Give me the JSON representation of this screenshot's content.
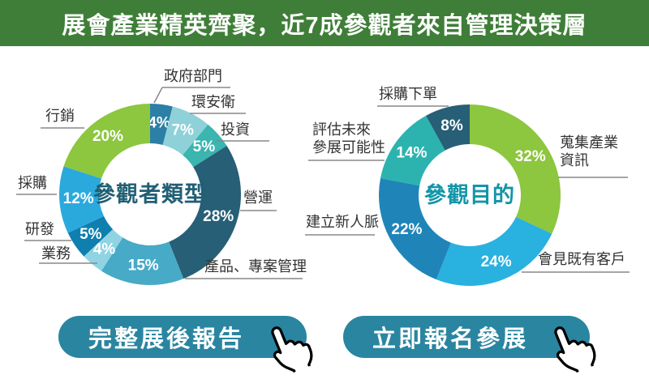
{
  "header": {
    "title": "展會產業精英齊聚，近7成參觀者來自管理決策層",
    "bg_color": "#3f7e38"
  },
  "colors": {
    "header_bg": "#3f7e38",
    "button_bg": "#2a85a1",
    "callout_text": "#333333",
    "leader_line": "#888888",
    "percent_text": "#ffffff"
  },
  "chart_data": [
    {
      "type": "pie",
      "subtype": "donut",
      "title": "參觀者類型",
      "title_color": "#215f74",
      "legend_position": "outside-callouts",
      "segments": [
        {
          "label": "政府部門",
          "display": "政府部門",
          "value": 4,
          "color": "#2c7fa6"
        },
        {
          "label": "環安衛",
          "display": "環安衛",
          "value": 7,
          "color": "#8ed1d8"
        },
        {
          "label": "投資",
          "display": "投資",
          "value": 5,
          "color": "#3ab5af"
        },
        {
          "label": "營運",
          "display": "營運",
          "value": 28,
          "color": "#265f76"
        },
        {
          "label": "產品、專案管理",
          "display": "產品、專案管理",
          "value": 15,
          "color": "#47aac6"
        },
        {
          "label": "業務",
          "display": "業務",
          "value": 4,
          "color": "#90d4e4"
        },
        {
          "label": "研發",
          "display": "研發",
          "value": 5,
          "color": "#0e7fae"
        },
        {
          "label": "採購",
          "display": "採購",
          "value": 12,
          "color": "#2aa9dd"
        },
        {
          "label": "行銷",
          "display": "行銷",
          "value": 20,
          "color": "#8dc63f"
        }
      ]
    },
    {
      "type": "pie",
      "subtype": "donut",
      "title": "參觀目的",
      "title_color": "#1295a8",
      "legend_position": "outside-callouts",
      "segments": [
        {
          "label": "蒐集產業資訊",
          "display": "蒐集產業\n資訊",
          "value": 32,
          "color": "#8dc63f"
        },
        {
          "label": "會見既有客戶",
          "display": "會見既有客戶",
          "value": 24,
          "color": "#29b1e0"
        },
        {
          "label": "建立新人脈",
          "display": "建立新人脈",
          "value": 22,
          "color": "#1f85b8"
        },
        {
          "label": "評估未來參展可能性",
          "display": "評估未來\n參展可能性",
          "value": 14,
          "color": "#2cb3b0"
        },
        {
          "label": "採購下單",
          "display": "採購下單",
          "value": 8,
          "color": "#265f76"
        }
      ]
    }
  ],
  "buttons": [
    {
      "label": "完整展後報告"
    },
    {
      "label": "立即報名參展"
    }
  ]
}
